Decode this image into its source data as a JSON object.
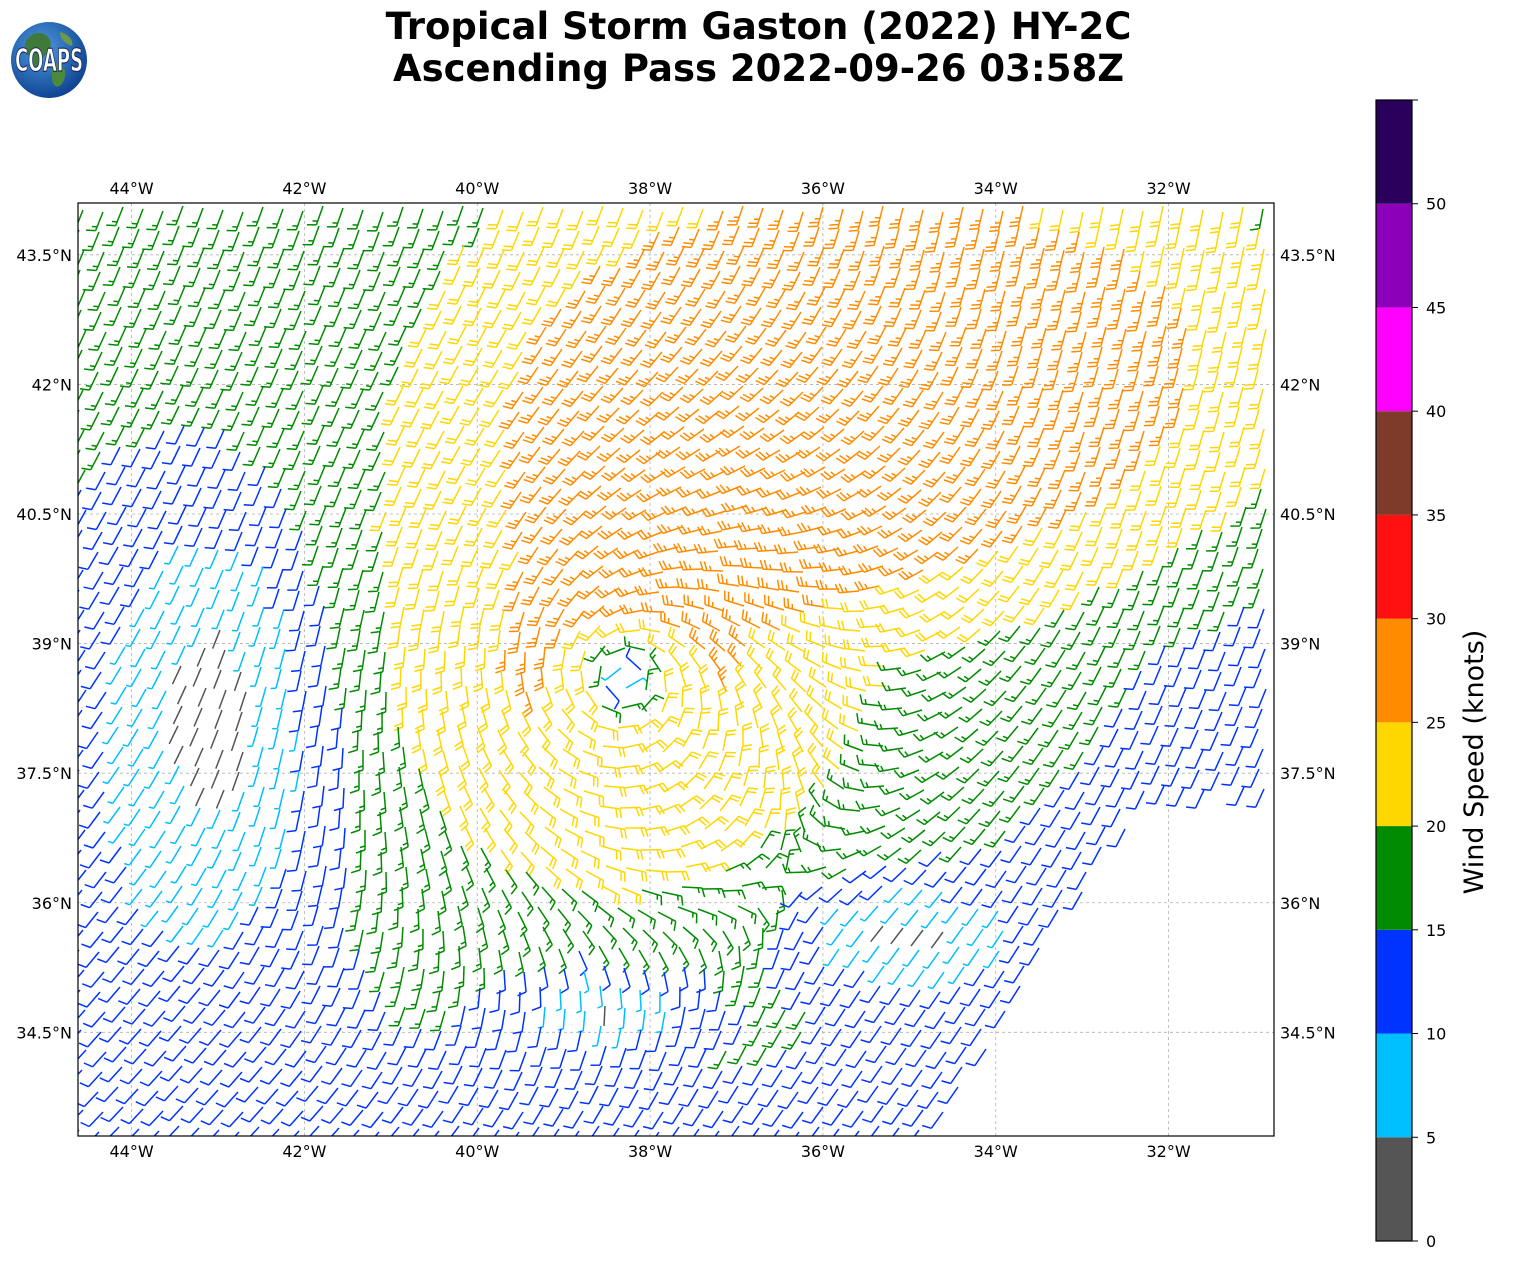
{
  "header": {
    "title_line1": "Tropical Storm Gaston (2022) HY-2C",
    "title_line2": "Ascending Pass 2022-09-26 03:58Z",
    "logo_text": "COAPS"
  },
  "map": {
    "lon_labels": [
      "44°W",
      "42°W",
      "40°W",
      "38°W",
      "36°W",
      "34°W",
      "32°W"
    ],
    "lon_values": [
      -44,
      -42,
      -40,
      -38,
      -36,
      -34,
      -32
    ],
    "lat_labels": [
      "43.5°N",
      "42°N",
      "40.5°N",
      "39°N",
      "37.5°N",
      "36°N",
      "34.5°N"
    ],
    "lat_values": [
      43.5,
      42,
      40.5,
      39,
      37.5,
      36,
      34.5
    ],
    "lon_range": [
      -44.62,
      -30.78
    ],
    "lat_range": [
      33.3,
      44.1
    ],
    "grid": true,
    "storm_center": {
      "lon": -38.3,
      "lat": 38.6
    },
    "swath_edge_east": "diagonal, from 32.2°W at 37.3°N to 34.3°W at 34.0°N",
    "wind_symbol": "wind barbs",
    "calm_symbol": "circle"
  },
  "colorbar": {
    "label": "Wind Speed (knots)",
    "tick_labels": [
      "0",
      "5",
      "10",
      "15",
      "20",
      "25",
      "30",
      "35",
      "40",
      "45",
      "50"
    ],
    "bins": [
      {
        "min": 0,
        "max": 5,
        "color": "#555555"
      },
      {
        "min": 5,
        "max": 10,
        "color": "#00bfff"
      },
      {
        "min": 10,
        "max": 15,
        "color": "#0033ff"
      },
      {
        "min": 15,
        "max": 20,
        "color": "#008b00"
      },
      {
        "min": 20,
        "max": 25,
        "color": "#ffd700"
      },
      {
        "min": 25,
        "max": 30,
        "color": "#ff8c00"
      },
      {
        "min": 30,
        "max": 35,
        "color": "#ff1010"
      },
      {
        "min": 35,
        "max": 40,
        "color": "#7f3b2a"
      },
      {
        "min": 40,
        "max": 45,
        "color": "#ff00ff"
      },
      {
        "min": 45,
        "max": 50,
        "color": "#8b00b8"
      },
      {
        "min": 50,
        "max": 55,
        "color": "#2a005c"
      }
    ]
  }
}
